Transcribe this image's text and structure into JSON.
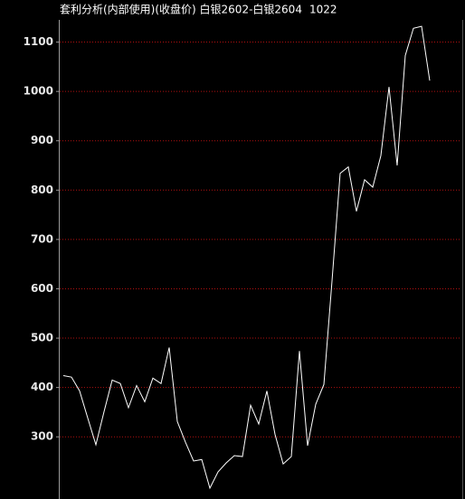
{
  "chart_data": {
    "type": "line",
    "title": "套利分析(内部使用)(收盘价) 白银2602-白银2604",
    "latest": "1022",
    "values": [
      424,
      421,
      393,
      338,
      284,
      351,
      415,
      408,
      359,
      404,
      371,
      419,
      408,
      481,
      331,
      289,
      251,
      254,
      196,
      229,
      247,
      262,
      260,
      364,
      326,
      393,
      305,
      245,
      260,
      474,
      282,
      366,
      406,
      616,
      834,
      847,
      757,
      821,
      806,
      870,
      1009,
      850,
      1073,
      1128,
      1132,
      1022
    ],
    "color": "#ffffff",
    "ylim": [
      174,
      1145
    ],
    "yticks": [
      300,
      400,
      500,
      600,
      700,
      800,
      900,
      1000,
      1100
    ],
    "grid": true,
    "grid_color": "#b01010"
  }
}
